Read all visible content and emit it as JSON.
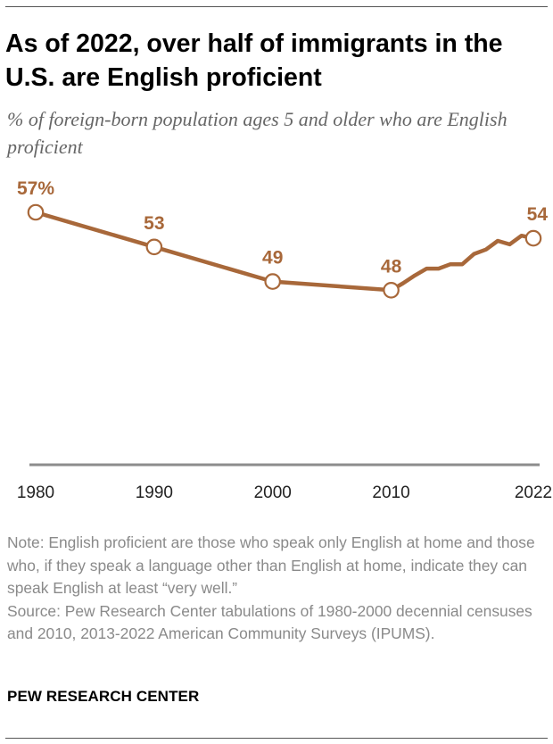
{
  "header": {
    "title": "As of 2022, over half of immigrants in the U.S. are English proficient",
    "subtitle": "% of foreign-born population ages 5 and older who are English proficient"
  },
  "chart_data": {
    "type": "line",
    "title": "As of 2022, over half of immigrants in the U.S. are English proficient",
    "subtitle": "% of foreign-born population ages 5 and older who are English proficient",
    "xlabel": "",
    "ylabel": "",
    "x_ticks": [
      "1980",
      "1990",
      "2000",
      "2010",
      "2022"
    ],
    "xlim": [
      1980,
      2022
    ],
    "ylim": [
      0,
      60
    ],
    "grid": false,
    "legend": "none",
    "color": "#A8683A",
    "series": [
      {
        "x": [
          1980,
          1990,
          2000,
          2010,
          2011,
          2012,
          2013,
          2014,
          2015,
          2016,
          2017,
          2018,
          2019,
          2020,
          2021,
          2022
        ],
        "y": [
          57,
          53,
          49,
          48,
          48.8,
          49.7,
          50.5,
          50.5,
          51.0,
          51.0,
          52.2,
          52.7,
          53.7,
          53.3,
          54.3,
          54
        ],
        "markers": [
          1980,
          1990,
          2000,
          2010,
          2022
        ],
        "labels": [
          {
            "x": 1980,
            "text": "57%"
          },
          {
            "x": 1990,
            "text": "53"
          },
          {
            "x": 2000,
            "text": "49"
          },
          {
            "x": 2010,
            "text": "48"
          },
          {
            "x": 2022,
            "text": "54"
          }
        ]
      }
    ]
  },
  "footer": {
    "note": "Note: English proficient are those who speak only English at home and those who, if they speak a language other than English at home, indicate they can speak English at least “very well.”",
    "source": "Source: Pew Research Center tabulations of 1980-2000 decennial censuses and 2010, 2013-2022 American Community Surveys (IPUMS).",
    "brand": "PEW RESEARCH CENTER"
  }
}
